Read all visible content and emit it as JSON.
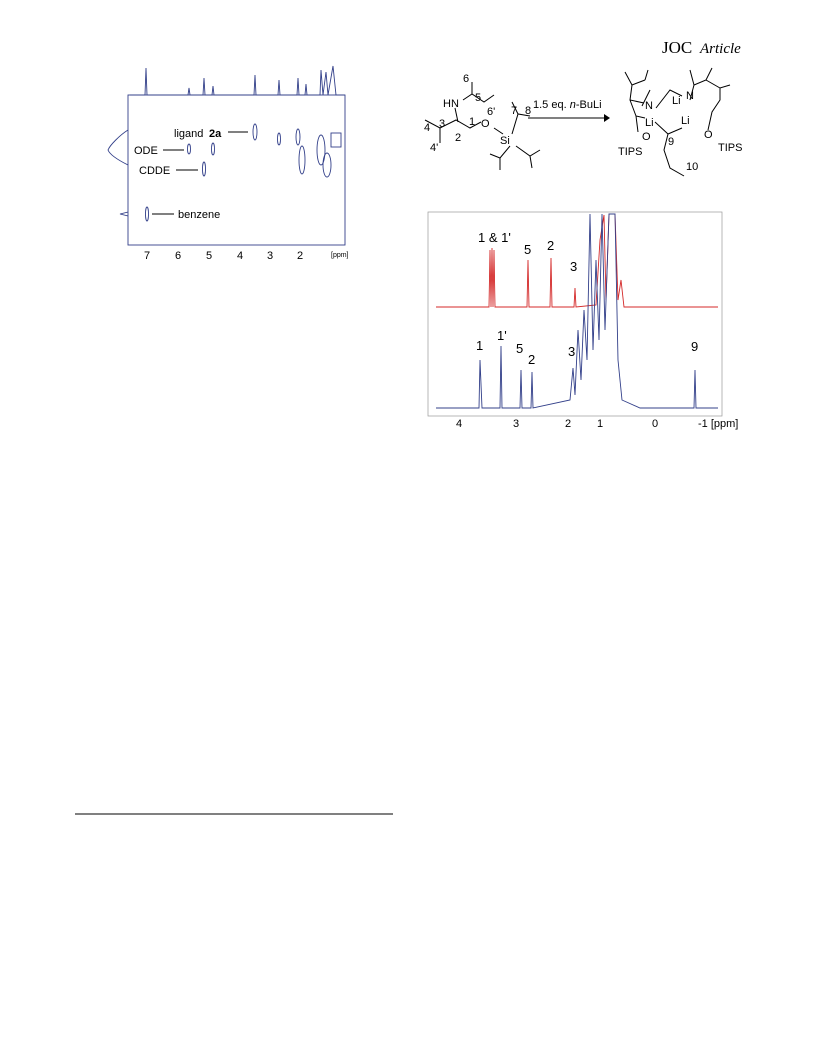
{
  "header": {
    "journal": "JOC",
    "section": "Article"
  },
  "figure_left": {
    "labels": [
      "ligand ",
      "2a",
      "ODE",
      "CDDE",
      "benzene"
    ],
    "x_ticks": [
      "7",
      "6",
      "5",
      "4",
      "3",
      "2",
      "[ppm]"
    ]
  },
  "scheme": {
    "reactant": [
      "HN",
      "6",
      "5",
      "6'",
      "4",
      "3",
      "2",
      "1",
      "O",
      "Si",
      "7",
      "8",
      "4'"
    ],
    "reagent": [
      "1.5 eq. ",
      "n",
      "-BuLi"
    ],
    "product": [
      "N",
      "Li",
      "N",
      "Li",
      "Li",
      "O",
      "O",
      "TIPS",
      "TIPS",
      "9",
      "10"
    ]
  },
  "figure_right": {
    "peak_labels_top": [
      "1 & 1'",
      "5",
      "2",
      "3"
    ],
    "peak_labels_bottom": [
      "1",
      "1'",
      "5",
      "2",
      "3",
      "9"
    ],
    "x_ticks": [
      "4",
      "3",
      "2",
      "1",
      "0",
      "-1 [ppm]"
    ]
  }
}
